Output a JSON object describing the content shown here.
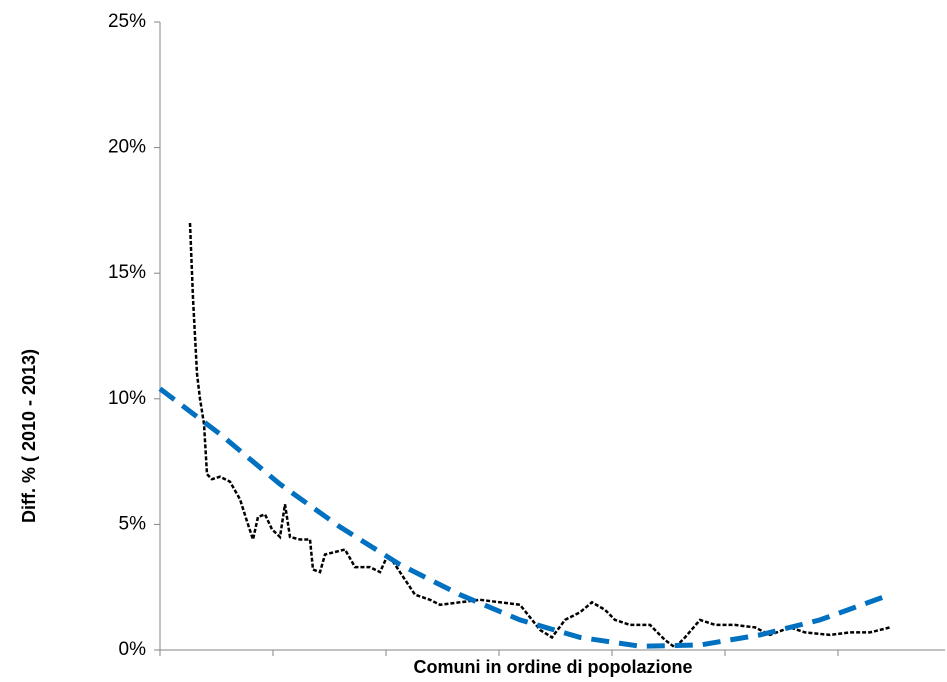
{
  "chart_data": {
    "type": "line",
    "xlabel": "Comuni in ordine di popolazione",
    "ylabel": "Diff. % ( 2010 - 2013)",
    "xlim": [
      0,
      785
    ],
    "xticks": [
      0,
      113,
      226,
      339,
      452,
      565,
      678
    ],
    "ylim": [
      0,
      25
    ],
    "yticks": [
      {
        "value": 0,
        "label": "0%"
      },
      {
        "value": 5,
        "label": "5%"
      },
      {
        "value": 10,
        "label": "10%"
      },
      {
        "value": 15,
        "label": "15%"
      },
      {
        "value": 20,
        "label": "20%"
      },
      {
        "value": 25,
        "label": "25%"
      }
    ],
    "series": [
      {
        "color": "#000000",
        "dash": "4,2",
        "x": [
          30,
          33,
          37,
          40,
          44,
          47,
          52,
          60,
          70,
          80,
          88,
          93,
          98,
          105,
          112,
          120,
          125,
          130,
          140,
          150,
          153,
          160,
          165,
          175,
          185,
          195,
          210,
          220,
          228,
          235,
          245,
          255,
          270,
          280,
          300,
          320,
          340,
          360,
          370,
          380,
          392,
          405,
          420,
          432,
          445,
          455,
          470,
          490,
          505,
          515,
          525,
          540,
          555,
          575,
          595,
          610,
          630,
          645,
          670,
          690,
          710,
          730
        ],
        "values": [
          17,
          14,
          11,
          10,
          9,
          7,
          6.8,
          6.9,
          6.7,
          6.0,
          5.0,
          4.4,
          5.3,
          5.4,
          4.8,
          4.5,
          5.8,
          4.5,
          4.4,
          4.4,
          3.2,
          3.1,
          3.8,
          3.9,
          4.0,
          3.3,
          3.3,
          3.1,
          3.8,
          3.4,
          2.8,
          2.2,
          2.0,
          1.8,
          1.9,
          2.0,
          1.9,
          1.8,
          1.3,
          0.8,
          0.5,
          1.2,
          1.5,
          1.9,
          1.6,
          1.2,
          1.0,
          1.0,
          0.4,
          0.1,
          0.5,
          1.2,
          1.0,
          1.0,
          0.9,
          0.6,
          0.9,
          0.7,
          0.6,
          0.7,
          0.7,
          0.9
        ]
      },
      {
        "color": "#0070c0",
        "dash": "18,10",
        "x": [
          0,
          60,
          120,
          180,
          240,
          300,
          360,
          420,
          480,
          540,
          600,
          660,
          730
        ],
        "values": [
          10.4,
          8.6,
          6.6,
          4.9,
          3.4,
          2.2,
          1.2,
          0.5,
          0.15,
          0.2,
          0.6,
          1.2,
          2.2
        ]
      }
    ]
  }
}
